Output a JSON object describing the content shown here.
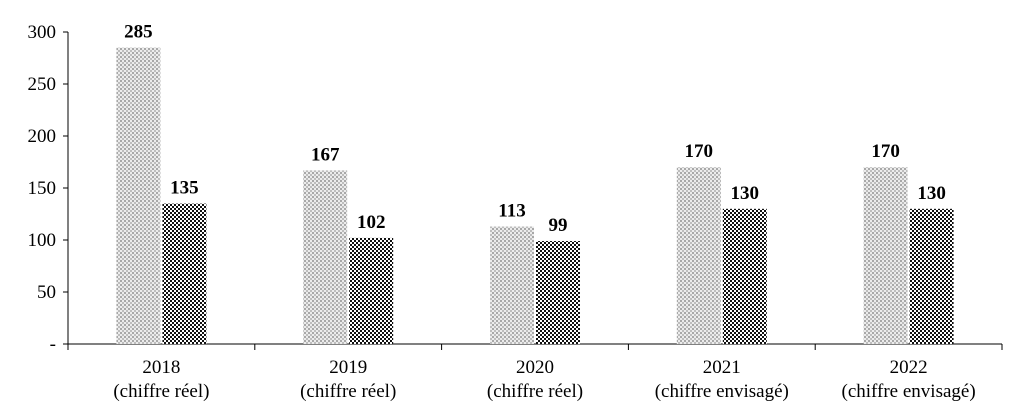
{
  "chart_data": {
    "type": "bar",
    "categories": [
      [
        "2018",
        "(chiffre réel)"
      ],
      [
        "2019",
        "(chiffre réel)"
      ],
      [
        "2020",
        "(chiffre réel)"
      ],
      [
        "2021",
        "(chiffre envisagé)"
      ],
      [
        "2022",
        "(chiffre envisagé)"
      ]
    ],
    "series": [
      {
        "values": [
          285,
          167,
          113,
          170,
          170
        ],
        "data_labels": [
          "285",
          "167",
          "113",
          "170",
          "170"
        ],
        "color": "#c8c8c8",
        "pattern": "light-dotted"
      },
      {
        "values": [
          135,
          102,
          99,
          130,
          130
        ],
        "data_labels": [
          "135",
          "102",
          "99",
          "130",
          "130"
        ],
        "color": "#1a1a1a",
        "pattern": "dark-checkered"
      }
    ],
    "title": "",
    "xlabel": "",
    "ylabel": "",
    "ylim": [
      0,
      300
    ],
    "yticks": [
      0,
      50,
      100,
      150,
      200,
      250,
      300
    ],
    "ytick_labels": [
      "-",
      "50",
      "100",
      "150",
      "200",
      "250",
      "300"
    ],
    "grid": false,
    "legend": "none"
  }
}
